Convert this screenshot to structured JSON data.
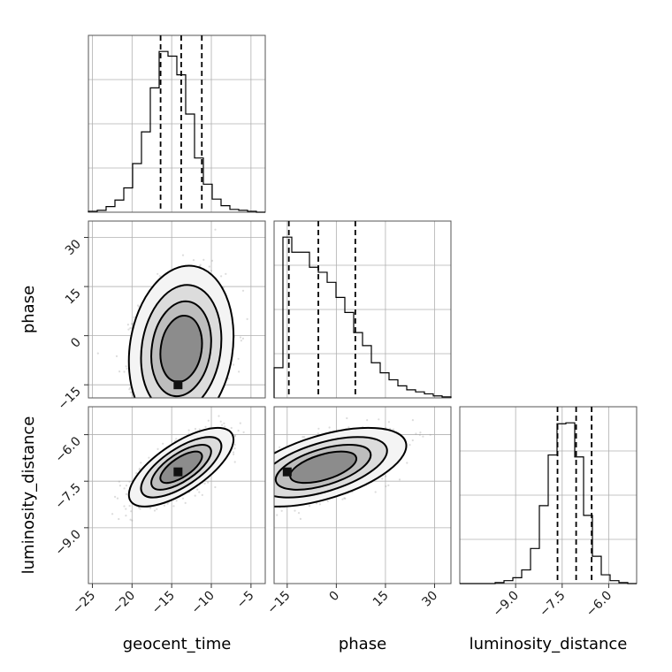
{
  "chart_data": {
    "type": "corner",
    "parameters": [
      "geocent_time",
      "phase",
      "luminosity_distance"
    ],
    "axis_labels": {
      "geocent_time": "geocent_time",
      "phase": "phase",
      "luminosity_distance": "luminosity_distance"
    },
    "ranges": {
      "geocent_time": [
        -25.5,
        -3.2
      ],
      "phase": [
        -19,
        35
      ],
      "luminosity_distance": [
        -10.8,
        -5.1
      ]
    },
    "ticks": {
      "geocent_time": [
        -25,
        -20,
        -15,
        -10,
        -5
      ],
      "phase": [
        -15,
        0,
        15,
        30
      ],
      "luminosity_distance": [
        -9.0,
        -7.5,
        -6.0
      ]
    },
    "tick_labels": {
      "geocent_time": [
        "−25",
        "−20",
        "−15",
        "−10",
        "−5"
      ],
      "phase": [
        "−15",
        "0",
        "15",
        "30"
      ],
      "luminosity_distance": [
        "−9.0",
        "−7.5",
        "−6.0"
      ]
    },
    "grid": true,
    "histograms": {
      "geocent_time": {
        "edges": [
          -25.5,
          -24.385,
          -23.27,
          -22.155,
          -21.04,
          -19.925,
          -18.81,
          -17.695,
          -16.58,
          -15.465,
          -14.35,
          -13.235,
          -12.12,
          -11.005,
          -9.89,
          -8.775,
          -7.66,
          -6.545,
          -5.43,
          -4.315,
          -3.2
        ],
        "counts": [
          1,
          2,
          6,
          13,
          26,
          52,
          86,
          133,
          172,
          167,
          147,
          105,
          58,
          30,
          14,
          7,
          3,
          2,
          1,
          0
        ],
        "quantiles": [
          -16.4,
          -13.8,
          -11.2
        ]
      },
      "phase": {
        "edges": [
          -19,
          -16.3,
          -13.6,
          -10.9,
          -8.2,
          -5.5,
          -2.8,
          -0.1,
          2.6,
          5.3,
          8.0,
          10.7,
          13.4,
          16.1,
          18.8,
          21.5,
          24.2,
          26.9,
          29.6,
          32.3,
          35
        ],
        "counts": [
          30,
          160,
          145,
          145,
          130,
          125,
          115,
          100,
          85,
          65,
          52,
          35,
          25,
          18,
          12,
          8,
          6,
          4,
          2,
          1
        ],
        "quantiles": [
          -14.5,
          -5.5,
          5.8
        ]
      },
      "luminosity_distance": {
        "edges": [
          -10.8,
          -10.515,
          -10.23,
          -9.945,
          -9.66,
          -9.375,
          -9.09,
          -8.805,
          -8.52,
          -8.235,
          -7.95,
          -7.665,
          -7.38,
          -7.095,
          -6.81,
          -6.525,
          -6.24,
          -5.955,
          -5.67,
          -5.385,
          -5.1
        ],
        "counts": [
          0,
          0,
          0,
          0,
          1,
          3,
          6,
          14,
          36,
          80,
          132,
          164,
          165,
          130,
          70,
          28,
          9,
          3,
          1,
          0
        ],
        "quantiles": [
          -7.65,
          -7.05,
          -6.55
        ]
      }
    },
    "joint": [
      {
        "x": "geocent_time",
        "y": "phase",
        "mean": [
          -13.8,
          -4
        ],
        "sigma": [
          2.6,
          10
        ],
        "rho": 0.15,
        "peak": [
          -14.2,
          -15
        ]
      },
      {
        "x": "geocent_time",
        "y": "luminosity_distance",
        "mean": [
          -13.8,
          -7.05
        ],
        "sigma": [
          2.6,
          0.5
        ],
        "rho": 0.7,
        "peak": [
          -14.2,
          -7.2
        ]
      },
      {
        "x": "phase",
        "y": "luminosity_distance",
        "mean": [
          -4,
          -7.05
        ],
        "sigma": [
          10,
          0.5
        ],
        "rho": 0.55,
        "peak": [
          -15,
          -7.2
        ]
      }
    ],
    "contour_levels": [
      0.4,
      0.65,
      0.85,
      0.96
    ]
  }
}
